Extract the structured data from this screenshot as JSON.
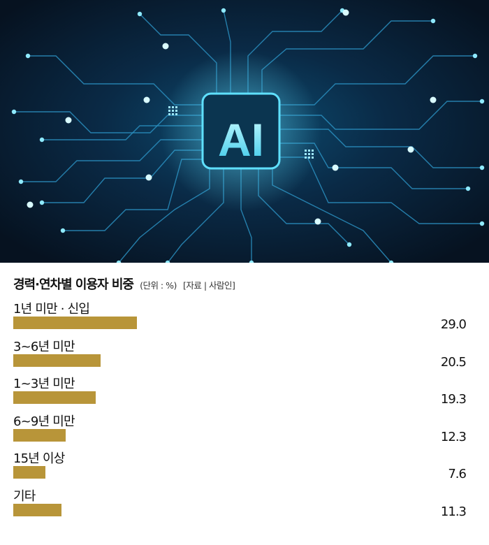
{
  "hero": {
    "logo_text": "AI",
    "colors": {
      "bg_dark": "#061220",
      "bg_mid": "#0a2a46",
      "glow": "#3fd4f5",
      "trace": "#2a8fbf"
    }
  },
  "chart_data": {
    "type": "bar",
    "orientation": "horizontal",
    "title": "경력·연차별 이용자 비중",
    "unit_note": "(단위 : %)",
    "source_note": "[자료 | 사람인]",
    "categories": [
      "1년 미만 · 신입",
      "3~6년 미만",
      "1~3년 미만",
      "6~9년 미만",
      "15년 이상",
      "기타"
    ],
    "values": [
      29.0,
      20.5,
      19.3,
      12.3,
      7.6,
      11.3
    ],
    "value_labels": [
      "29.0",
      "20.5",
      "19.3",
      "12.3",
      "7.6",
      "11.3"
    ],
    "bar_color": "#b89539",
    "grid": false
  }
}
